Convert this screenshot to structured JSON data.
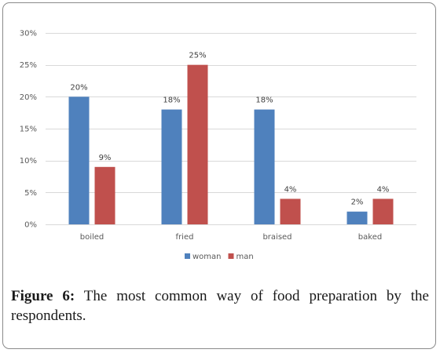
{
  "chart_data": {
    "type": "bar",
    "categories": [
      "boiled",
      "fried",
      "braised",
      "baked"
    ],
    "series": [
      {
        "name": "woman",
        "values": [
          20,
          18,
          18,
          2
        ],
        "labels": [
          "20%",
          "18%",
          "18%",
          "2%"
        ]
      },
      {
        "name": "man",
        "values": [
          9,
          25,
          4,
          4
        ],
        "labels": [
          "9%",
          "25%",
          "4%",
          "4%"
        ]
      }
    ],
    "ylim": [
      0,
      30
    ],
    "yticks": [
      0,
      5,
      10,
      15,
      20,
      25,
      30
    ],
    "ytick_labels": [
      "0%",
      "5%",
      "10%",
      "15%",
      "20%",
      "25%",
      "30%"
    ],
    "grid": true,
    "legend_position": "bottom",
    "colors": {
      "woman": "#4f81bd",
      "man": "#c0504d",
      "grid": "#d9d9d9"
    }
  },
  "caption": {
    "label": "Figure 6:",
    "text": "The most common way of food preparation by the respondents."
  }
}
